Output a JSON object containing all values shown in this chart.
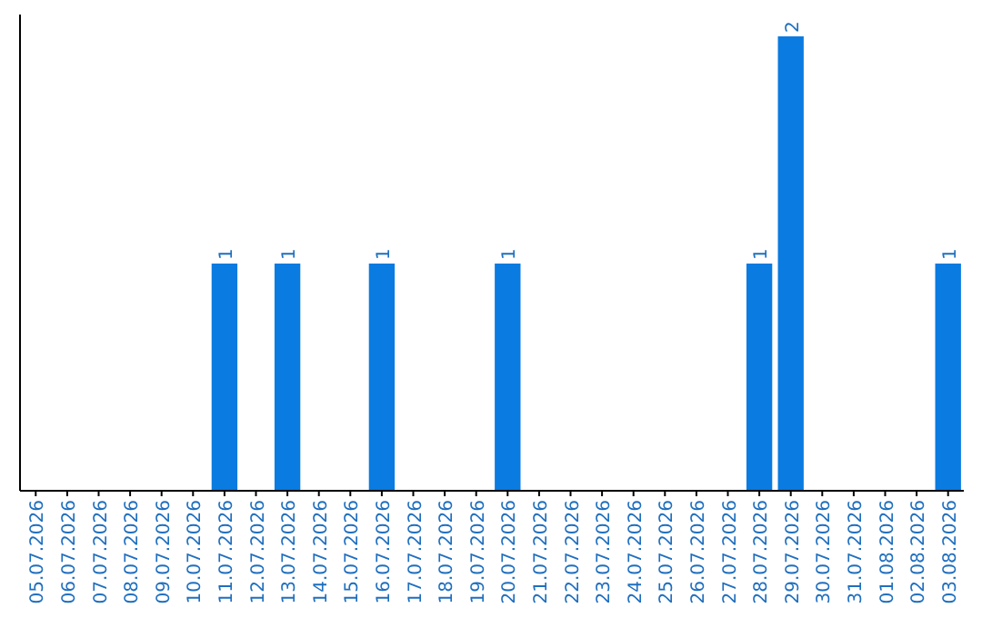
{
  "chart_data": {
    "type": "bar",
    "categories": [
      "05.07.2026",
      "06.07.2026",
      "07.07.2026",
      "08.07.2026",
      "09.07.2026",
      "10.07.2026",
      "11.07.2026",
      "12.07.2026",
      "13.07.2026",
      "14.07.2026",
      "15.07.2026",
      "16.07.2026",
      "17.07.2026",
      "18.07.2026",
      "19.07.2026",
      "20.07.2026",
      "21.07.2026",
      "22.07.2026",
      "23.07.2026",
      "24.07.2026",
      "25.07.2026",
      "26.07.2026",
      "27.07.2026",
      "28.07.2026",
      "29.07.2026",
      "30.07.2026",
      "31.07.2026",
      "01.08.2026",
      "02.08.2026",
      "03.08.2026"
    ],
    "values": [
      0,
      0,
      0,
      0,
      0,
      0,
      1,
      0,
      1,
      0,
      0,
      1,
      0,
      0,
      0,
      1,
      0,
      0,
      0,
      0,
      0,
      0,
      0,
      1,
      2,
      0,
      0,
      0,
      0,
      1
    ],
    "value_labels": [
      null,
      null,
      null,
      null,
      null,
      null,
      "1",
      null,
      "1",
      null,
      null,
      "1",
      null,
      null,
      null,
      "1",
      null,
      null,
      null,
      null,
      null,
      null,
      null,
      "1",
      "2",
      null,
      null,
      null,
      null,
      "1"
    ],
    "color": "#0a7be0",
    "tick_labels": "x"
  }
}
